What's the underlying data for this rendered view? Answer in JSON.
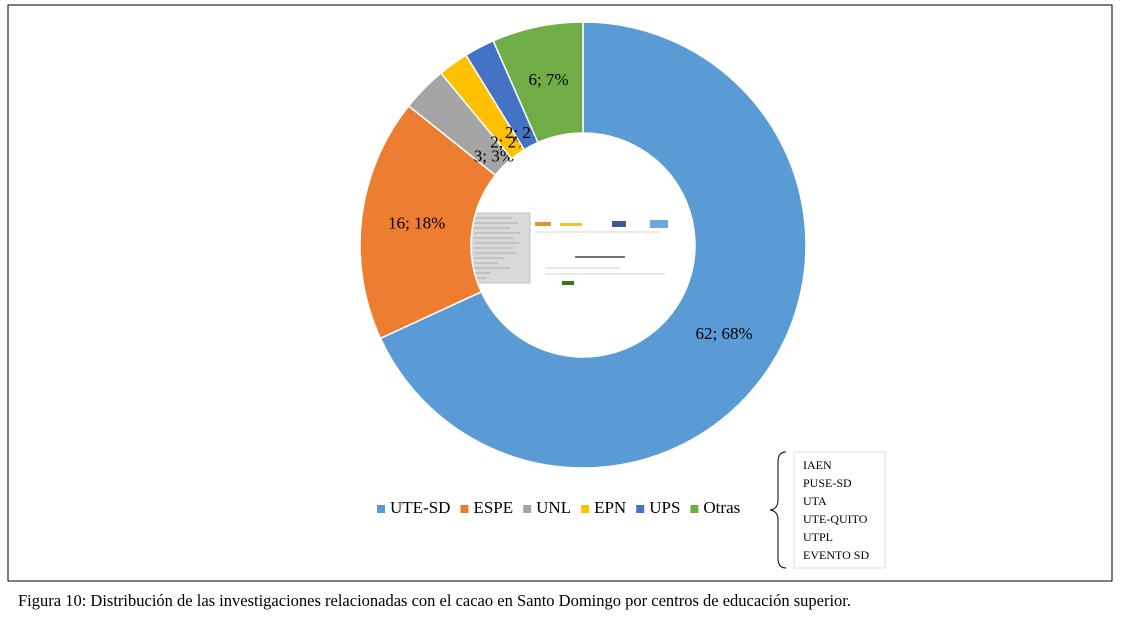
{
  "chart_data": {
    "type": "donut",
    "categories": [
      "UTE-SD",
      "ESPE",
      "UNL",
      "EPN",
      "UPS",
      "Otras"
    ],
    "values": [
      62,
      16,
      3,
      2,
      2,
      6
    ],
    "value_labels": [
      "62; 68%",
      "16; 18%",
      "3; 3%",
      "2; 2%",
      "2; 2%",
      "6; 7%"
    ],
    "colors": [
      "#5b9bd5",
      "#ed7d31",
      "#a5a5a5",
      "#ffc000",
      "#4472c4",
      "#70ad47"
    ],
    "legend": "bottom",
    "annotation": {
      "items": [
        "IAEN",
        "PUSE-SD",
        "UTA",
        "UTE-QUITO",
        "UTPL",
        "EVENTO SD"
      ]
    }
  },
  "caption": "Figura 10: Distribución de las investigaciones relacionadas con el cacao en Santo Domingo por centros de educación superior."
}
